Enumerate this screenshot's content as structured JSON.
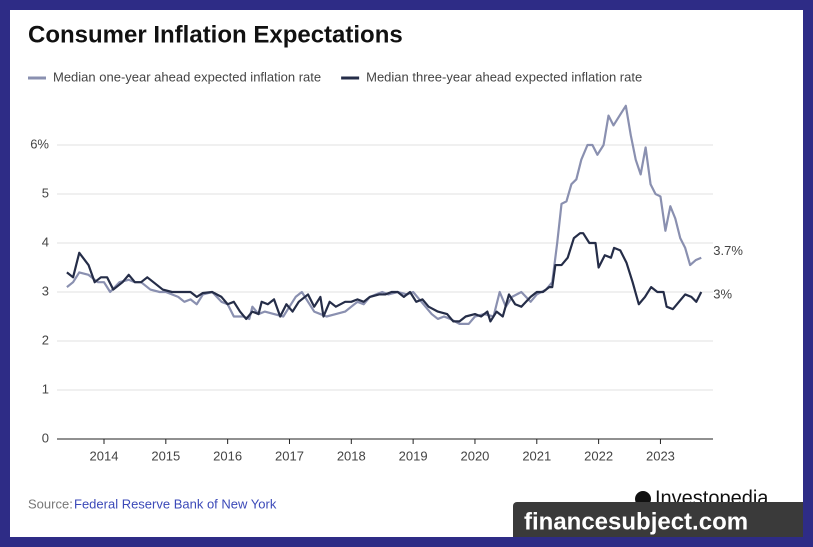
{
  "chart_data": {
    "type": "line",
    "title": "Consumer Inflation Expectations",
    "source_label": "Source:",
    "source": "Federal Reserve Bank of New York",
    "brand": "Investopedia",
    "watermark": "financesubject.com",
    "xlim": [
      2013.24,
      2023.85
    ],
    "xticks": [
      2014,
      2015,
      2016,
      2017,
      2018,
      2019,
      2020,
      2021,
      2022,
      2023
    ],
    "ylim": [
      0,
      7
    ],
    "yticks": [
      0,
      1,
      2,
      3,
      4,
      5,
      {
        "value": 6,
        "label": "6%"
      }
    ],
    "grid": true,
    "series": [
      {
        "name": "Median one-year ahead expected inflation rate",
        "color": "#8a90b0",
        "end_label": "3.7%",
        "x": [
          2013.4,
          2013.5,
          2013.6,
          2013.75,
          2013.9,
          2014.0,
          2014.1,
          2014.25,
          2014.4,
          2014.5,
          2014.6,
          2014.75,
          2014.9,
          2015.0,
          2015.2,
          2015.3,
          2015.4,
          2015.5,
          2015.6,
          2015.75,
          2015.9,
          2016.0,
          2016.1,
          2016.25,
          2016.35,
          2016.4,
          2016.5,
          2016.6,
          2016.75,
          2016.9,
          2017.0,
          2017.1,
          2017.2,
          2017.3,
          2017.4,
          2017.5,
          2017.6,
          2017.75,
          2017.9,
          2018.0,
          2018.1,
          2018.2,
          2018.3,
          2018.4,
          2018.5,
          2018.6,
          2018.75,
          2018.9,
          2019.0,
          2019.1,
          2019.2,
          2019.3,
          2019.4,
          2019.5,
          2019.6,
          2019.75,
          2019.9,
          2020.0,
          2020.15,
          2020.3,
          2020.35,
          2020.4,
          2020.5,
          2020.6,
          2020.75,
          2020.9,
          2021.0,
          2021.15,
          2021.25,
          2021.33,
          2021.4,
          2021.48,
          2021.56,
          2021.64,
          2021.72,
          2021.82,
          2021.9,
          2021.98,
          2022.08,
          2022.16,
          2022.24,
          2022.34,
          2022.44,
          2022.52,
          2022.6,
          2022.68,
          2022.76,
          2022.84,
          2022.92,
          2023.0,
          2023.08,
          2023.16,
          2023.24,
          2023.32,
          2023.4,
          2023.48,
          2023.57,
          2023.66
        ],
        "values": [
          3.1,
          3.2,
          3.4,
          3.35,
          3.2,
          3.2,
          3.0,
          3.2,
          3.25,
          3.2,
          3.2,
          3.05,
          3.0,
          3.0,
          2.9,
          2.8,
          2.85,
          2.75,
          2.95,
          3.0,
          2.8,
          2.75,
          2.5,
          2.5,
          2.45,
          2.7,
          2.55,
          2.6,
          2.55,
          2.5,
          2.7,
          2.9,
          3.0,
          2.8,
          2.6,
          2.55,
          2.5,
          2.55,
          2.6,
          2.7,
          2.8,
          2.75,
          2.9,
          2.95,
          3.0,
          2.95,
          3.0,
          2.95,
          3.0,
          2.85,
          2.7,
          2.55,
          2.45,
          2.5,
          2.45,
          2.35,
          2.35,
          2.5,
          2.55,
          2.5,
          2.75,
          3.0,
          2.7,
          2.9,
          3.0,
          2.8,
          2.95,
          3.05,
          3.2,
          4.0,
          4.8,
          4.85,
          5.2,
          5.3,
          5.7,
          6.0,
          6.0,
          5.8,
          6.0,
          6.6,
          6.4,
          6.6,
          6.8,
          6.2,
          5.7,
          5.4,
          5.95,
          5.2,
          5.0,
          4.95,
          4.25,
          4.75,
          4.5,
          4.1,
          3.9,
          3.55,
          3.65,
          3.7
        ]
      },
      {
        "name": "Median three-year ahead expected inflation rate",
        "color": "#252d48",
        "end_label": "3%",
        "x": [
          2013.4,
          2013.5,
          2013.6,
          2013.75,
          2013.85,
          2013.95,
          2014.05,
          2014.15,
          2014.3,
          2014.4,
          2014.5,
          2014.6,
          2014.7,
          2014.8,
          2014.95,
          2015.1,
          2015.25,
          2015.4,
          2015.5,
          2015.6,
          2015.75,
          2015.9,
          2016.0,
          2016.1,
          2016.2,
          2016.3,
          2016.4,
          2016.5,
          2016.55,
          2016.65,
          2016.75,
          2016.85,
          2016.95,
          2017.05,
          2017.15,
          2017.3,
          2017.4,
          2017.5,
          2017.55,
          2017.65,
          2017.75,
          2017.9,
          2018.0,
          2018.1,
          2018.2,
          2018.3,
          2018.45,
          2018.55,
          2018.65,
          2018.75,
          2018.85,
          2018.95,
          2019.05,
          2019.15,
          2019.25,
          2019.4,
          2019.55,
          2019.65,
          2019.75,
          2019.85,
          2020.0,
          2020.1,
          2020.2,
          2020.25,
          2020.35,
          2020.45,
          2020.55,
          2020.65,
          2020.75,
          2020.9,
          2021.0,
          2021.1,
          2021.2,
          2021.25,
          2021.3,
          2021.4,
          2021.5,
          2021.6,
          2021.7,
          2021.75,
          2021.85,
          2021.95,
          2022.0,
          2022.1,
          2022.2,
          2022.25,
          2022.35,
          2022.45,
          2022.55,
          2022.65,
          2022.75,
          2022.85,
          2022.95,
          2023.05,
          2023.1,
          2023.2,
          2023.3,
          2023.4,
          2023.5,
          2023.58,
          2023.66
        ],
        "values": [
          3.4,
          3.3,
          3.8,
          3.55,
          3.2,
          3.3,
          3.3,
          3.05,
          3.2,
          3.35,
          3.2,
          3.2,
          3.3,
          3.2,
          3.05,
          3.0,
          3.0,
          3.0,
          2.9,
          2.98,
          3.0,
          2.9,
          2.75,
          2.8,
          2.6,
          2.45,
          2.6,
          2.55,
          2.8,
          2.75,
          2.85,
          2.5,
          2.75,
          2.6,
          2.8,
          2.95,
          2.7,
          2.9,
          2.5,
          2.8,
          2.7,
          2.8,
          2.8,
          2.85,
          2.8,
          2.9,
          2.95,
          2.95,
          3.0,
          3.0,
          2.9,
          3.0,
          2.8,
          2.85,
          2.7,
          2.6,
          2.55,
          2.4,
          2.4,
          2.5,
          2.55,
          2.5,
          2.6,
          2.4,
          2.6,
          2.5,
          2.95,
          2.75,
          2.7,
          2.9,
          3.0,
          3.0,
          3.1,
          3.1,
          3.55,
          3.55,
          3.7,
          4.1,
          4.2,
          4.2,
          4.0,
          4.0,
          3.5,
          3.75,
          3.7,
          3.9,
          3.85,
          3.6,
          3.2,
          2.75,
          2.9,
          3.1,
          3.0,
          3.0,
          2.7,
          2.65,
          2.8,
          2.95,
          2.9,
          2.8,
          3.0
        ]
      }
    ]
  }
}
